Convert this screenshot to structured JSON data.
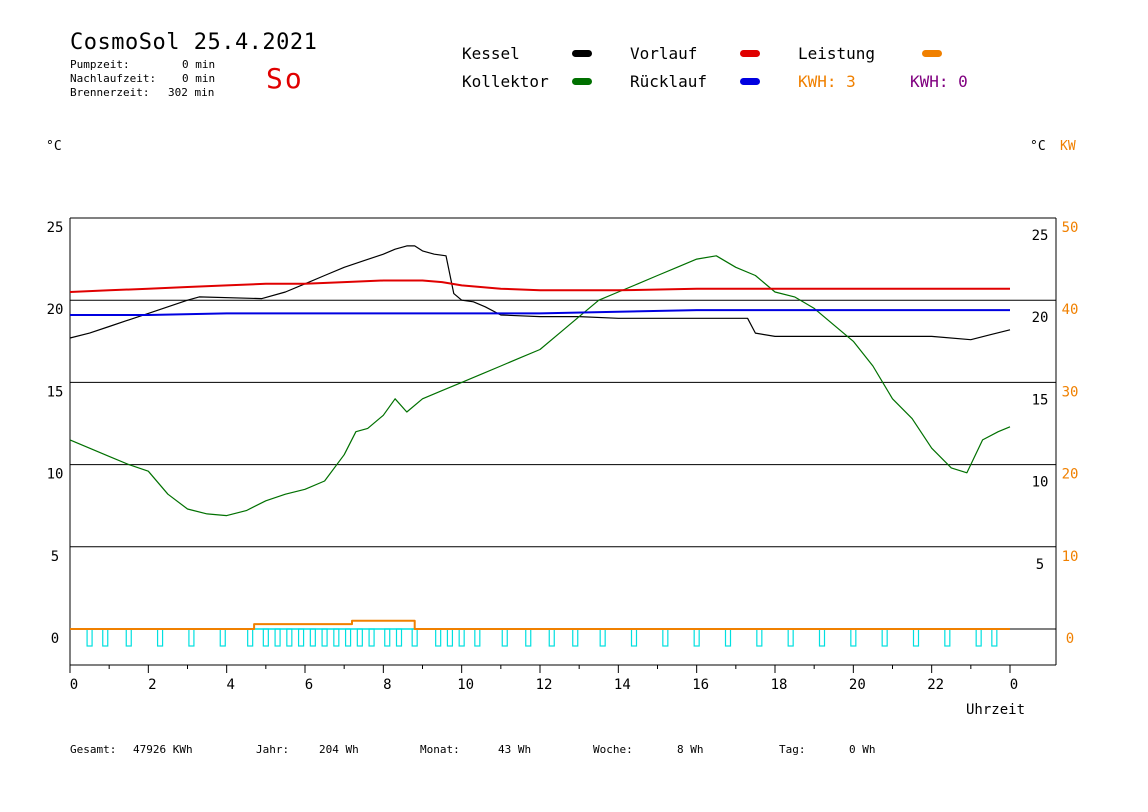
{
  "header": {
    "title": "CosmoSol 25.4.2021",
    "pump_label": "Pumpzeit:",
    "pump_value": "0 min",
    "nachlauf_label": "Nachlaufzeit:",
    "nachlauf_value": "0 min",
    "brenner_label": "Brennerzeit:",
    "brenner_value": "302 min",
    "weekday": "So"
  },
  "legend": {
    "kessel": "Kessel",
    "kollektor": "Kollektor",
    "vorlauf": "Vorlauf",
    "ruecklauf": "Rücklauf",
    "leistung": "Leistung",
    "kwh1": "KWH: 3",
    "kwh2": "KWH: 0"
  },
  "colors": {
    "kessel": "#000000",
    "kollektor": "#007000",
    "vorlauf": "#e00000",
    "ruecklauf": "#0000e0",
    "leistung": "#f08000",
    "kwh2": "#800080",
    "pump": "#00e0e0"
  },
  "units": {
    "left": "°C",
    "right_c": "°C",
    "right_kw": "KW"
  },
  "footer": {
    "gesamt_label": "Gesamt:",
    "gesamt_value": "47926 KWh",
    "jahr_label": "Jahr:",
    "jahr_value": "204 Wh",
    "monat_label": "Monat:",
    "monat_value": "43 Wh",
    "woche_label": "Woche:",
    "woche_value": "8 Wh",
    "tag_label": "Tag:",
    "tag_value": "0 Wh"
  },
  "chart_data": {
    "type": "line",
    "xlabel": "Uhrzeit",
    "xlim": [
      0,
      24
    ],
    "ylim": [
      -2,
      25
    ],
    "x_ticks": [
      "0",
      "2",
      "4",
      "6",
      "8",
      "10",
      "12",
      "14",
      "16",
      "18",
      "20",
      "22",
      "0"
    ],
    "y_left_ticks": [
      "25",
      "20",
      "15",
      "10",
      "5",
      "0"
    ],
    "y_right_ticks": [
      "25",
      "20",
      "15",
      "10",
      "5"
    ],
    "y_right_kw_ticks": [
      "50",
      "40",
      "30",
      "20",
      "10",
      "0"
    ],
    "grid": true,
    "series": [
      {
        "name": "Kessel",
        "x": [
          0,
          0.5,
          1,
          1.5,
          2,
          2.5,
          3,
          3.3,
          4.9,
          5.5,
          6,
          6.5,
          7,
          7.5,
          8,
          8.3,
          8.6,
          8.8,
          9,
          9.3,
          9.6,
          9.8,
          10,
          10.3,
          10.6,
          11,
          12,
          13,
          14,
          15,
          16,
          17,
          17.3,
          17.5,
          18,
          19,
          20,
          21,
          22,
          23,
          23.5,
          24
        ],
        "y": [
          17.7,
          18,
          18.4,
          18.8,
          19.2,
          19.6,
          20,
          20.2,
          20.1,
          20.5,
          21,
          21.5,
          22,
          22.4,
          22.8,
          23.1,
          23.3,
          23.3,
          23,
          22.8,
          22.7,
          20.4,
          20,
          19.9,
          19.6,
          19.1,
          19,
          19,
          18.9,
          18.9,
          18.9,
          18.9,
          18.9,
          18,
          17.8,
          17.8,
          17.8,
          17.8,
          17.8,
          17.6,
          17.9,
          18.2
        ]
      },
      {
        "name": "Kollektor",
        "x": [
          0,
          0.5,
          1,
          1.5,
          2,
          2.5,
          3,
          3.5,
          4,
          4.5,
          5,
          5.5,
          6,
          6.5,
          7,
          7.3,
          7.6,
          8,
          8.3,
          8.6,
          9,
          9.5,
          10,
          10.5,
          11,
          11.5,
          12,
          12.5,
          13,
          13.5,
          14,
          14.5,
          15,
          15.5,
          16,
          16.5,
          17,
          17.5,
          18,
          18.5,
          19,
          19.5,
          20,
          20.5,
          21,
          21.5,
          22,
          22.5,
          22.9,
          23.3,
          23.7,
          24
        ],
        "y": [
          11.5,
          11,
          10.5,
          10,
          9.6,
          8.2,
          7.3,
          7,
          6.9,
          7.2,
          7.8,
          8.2,
          8.5,
          9,
          10.6,
          12,
          12.2,
          13,
          14,
          13.2,
          14,
          14.5,
          15,
          15.5,
          16,
          16.5,
          17,
          18,
          19,
          20,
          20.5,
          21,
          21.5,
          22,
          22.5,
          22.7,
          22,
          21.5,
          20.5,
          20.2,
          19.5,
          18.5,
          17.5,
          16,
          14,
          12.8,
          11,
          9.8,
          9.5,
          11.5,
          12,
          12.3
        ]
      },
      {
        "name": "Vorlauf",
        "x": [
          0,
          1,
          2,
          3,
          4,
          5,
          6,
          7,
          8,
          9,
          9.5,
          10,
          11,
          12,
          14,
          16,
          18,
          20,
          22,
          24
        ],
        "y": [
          20.5,
          20.6,
          20.7,
          20.8,
          20.9,
          21,
          21,
          21.1,
          21.2,
          21.2,
          21.1,
          20.9,
          20.7,
          20.6,
          20.6,
          20.7,
          20.7,
          20.7,
          20.7,
          20.7
        ]
      },
      {
        "name": "Rücklauf",
        "x": [
          0,
          2,
          4,
          6,
          8,
          10,
          12,
          14,
          16,
          18,
          20,
          22,
          24
        ],
        "y": [
          19.1,
          19.1,
          19.2,
          19.2,
          19.2,
          19.2,
          19.2,
          19.3,
          19.4,
          19.4,
          19.4,
          19.4,
          19.4
        ]
      },
      {
        "name": "Leistung",
        "x": [
          0,
          4.7,
          4.7,
          7.2,
          7.2,
          8.8,
          8.8,
          24
        ],
        "y": [
          0,
          0,
          0.3,
          0.3,
          0.5,
          0.5,
          0,
          0
        ]
      }
    ],
    "pump_pulses_x": [
      0.5,
      0.9,
      1.5,
      2.3,
      3.1,
      3.9,
      4.6,
      5,
      5.3,
      5.6,
      5.9,
      6.2,
      6.5,
      6.8,
      7.1,
      7.4,
      7.7,
      8.1,
      8.4,
      8.8,
      9.4,
      9.7,
      10,
      10.4,
      11.1,
      11.7,
      12.3,
      12.9,
      13.6,
      14.4,
      15.2,
      16,
      16.8,
      17.6,
      18.4,
      19.2,
      20,
      20.8,
      21.6,
      22.4,
      23.2,
      23.6
    ]
  }
}
